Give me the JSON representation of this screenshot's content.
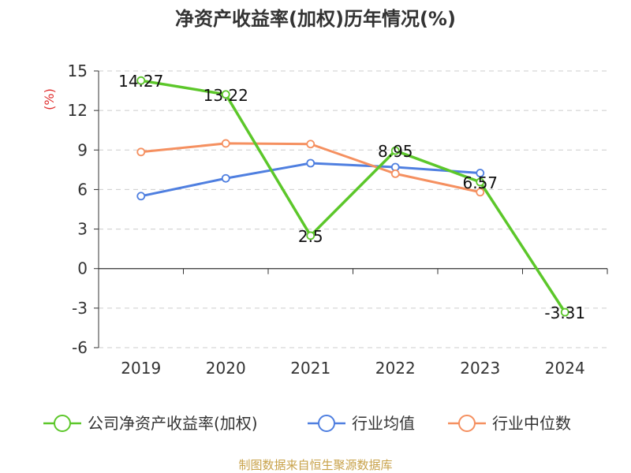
{
  "chart_data": {
    "type": "line",
    "title": "净资产收益率(加权)历年情况(%)",
    "ylabel": "(%)",
    "xlabel": "",
    "categories": [
      "2019",
      "2020",
      "2021",
      "2022",
      "2023",
      "2024"
    ],
    "ylim": [
      -6,
      15
    ],
    "yticks": [
      15,
      12,
      9,
      6,
      3,
      0,
      -3,
      -6
    ],
    "grid": "horizontal-dashed",
    "legend_position": "bottom",
    "series": [
      {
        "name": "公司净资产收益率(加权)",
        "color": "#5cc72a",
        "values": [
          14.27,
          13.22,
          2.5,
          8.95,
          6.57,
          -3.31
        ],
        "labels": [
          "14.27",
          "13.22",
          "2.5",
          "8.95",
          "6.57",
          "-3.31"
        ]
      },
      {
        "name": "行业均值",
        "color": "#4f7fe0",
        "values": [
          5.5,
          6.85,
          8.0,
          7.7,
          7.25,
          null
        ]
      },
      {
        "name": "行业中位数",
        "color": "#f59060",
        "values": [
          8.85,
          9.5,
          9.45,
          7.2,
          5.8,
          null
        ]
      }
    ]
  },
  "source": "制图数据来自恒生聚源数据库"
}
